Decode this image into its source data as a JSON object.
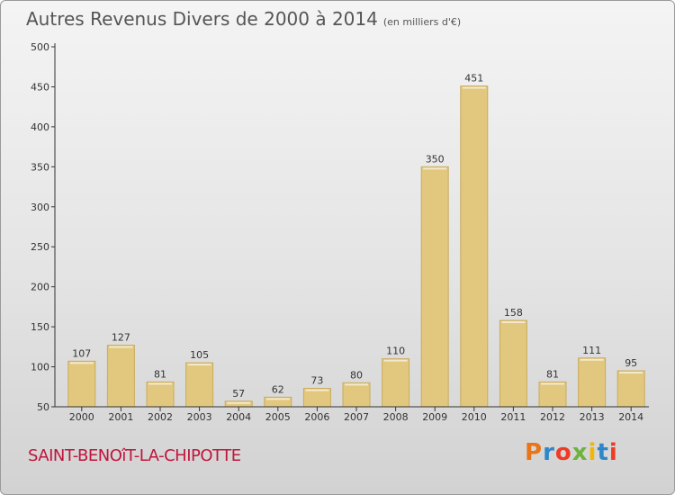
{
  "header": {
    "title": "Autres Revenus Divers de 2000 à 2014",
    "subtitle": "(en milliers d'€)"
  },
  "footer": {
    "place": "SAINT-BENOîT-LA-CHIPOTTE",
    "brand_letters": [
      "P",
      "r",
      "o",
      "x",
      "i",
      "t",
      "i"
    ]
  },
  "colors": {
    "bar_fill": "#e2c77e",
    "bar_edge": "#c9ab5c",
    "axis": "#333333",
    "place_text": "#c0143c"
  },
  "chart_data": {
    "type": "bar",
    "title": "Autres Revenus Divers de 2000 à 2014",
    "subtitle": "(en milliers d'€)",
    "xlabel": "",
    "ylabel": "",
    "categories": [
      "2000",
      "2001",
      "2002",
      "2003",
      "2004",
      "2005",
      "2006",
      "2007",
      "2008",
      "2009",
      "2010",
      "2011",
      "2012",
      "2013",
      "2014"
    ],
    "values": [
      107,
      127,
      81,
      105,
      57,
      62,
      73,
      80,
      110,
      350,
      451,
      158,
      81,
      111,
      95
    ],
    "ylim": [
      50,
      500
    ],
    "yticks": [
      50,
      100,
      150,
      200,
      250,
      300,
      350,
      400,
      450,
      500
    ],
    "grid": false,
    "legend": "none"
  }
}
